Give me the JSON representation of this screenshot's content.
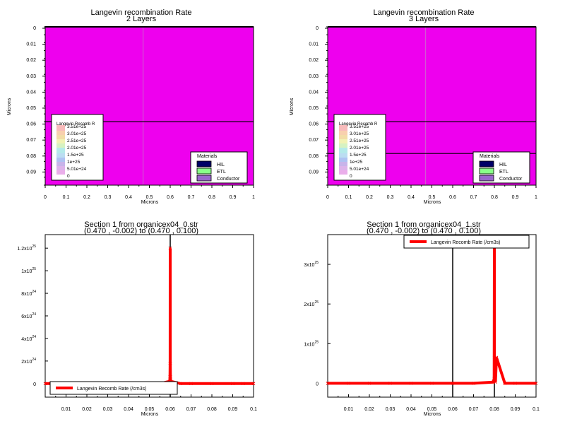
{
  "panels": [
    {
      "id": "tl",
      "kind": "contour",
      "title": "Langevin recombination Rate",
      "subtitle": "2 Layers",
      "xlabel": "Microns",
      "ylabel": "Microns",
      "xticks": [
        "0",
        "0.1",
        "0.2",
        "0.3",
        "0.4",
        "0.5",
        "0.6",
        "0.7",
        "0.8",
        "0.9",
        "1"
      ],
      "yticks": [
        "0",
        "0.01",
        "0.02",
        "0.03",
        "0.04",
        "0.05",
        "0.06",
        "0.07",
        "0.08",
        "0.09"
      ],
      "layer_boundaries_um": [
        0.06
      ],
      "colorbar_title": "Langevin Recomb R",
      "colorbar_levels": [
        "3.51e+25",
        "3.01e+25",
        "2.51e+25",
        "2.01e+25",
        "1.5e+25",
        "1e+25",
        "5.01e+24",
        "0"
      ],
      "materials_title": "Materials",
      "materials": [
        {
          "name": "HIL",
          "color": "#000066"
        },
        {
          "name": "ETL",
          "color": "#88ff88"
        },
        {
          "name": "Conductor",
          "color": "#9966cc"
        }
      ]
    },
    {
      "id": "tr",
      "kind": "contour",
      "title": "Langevin recombination Rate",
      "subtitle": "3 Layers",
      "xlabel": "Microns",
      "ylabel": "Microns",
      "xticks": [
        "0",
        "0.1",
        "0.2",
        "0.3",
        "0.4",
        "0.5",
        "0.6",
        "0.7",
        "0.8",
        "0.9",
        "1"
      ],
      "yticks": [
        "0",
        "0.01",
        "0.02",
        "0.03",
        "0.04",
        "0.05",
        "0.06",
        "0.07",
        "0.08",
        "0.09"
      ],
      "layer_boundaries_um": [
        0.06,
        0.08
      ],
      "colorbar_title": "Langevin Recomb R",
      "colorbar_levels": [
        "3.51e+25",
        "3.01e+25",
        "2.51e+25",
        "2.01e+25",
        "1.5e+25",
        "1e+25",
        "5.01e+24",
        "0"
      ],
      "materials_title": "Materials",
      "materials": [
        {
          "name": "HIL",
          "color": "#000066"
        },
        {
          "name": "ETL",
          "color": "#88ff88"
        },
        {
          "name": "Conductor",
          "color": "#9966cc"
        }
      ]
    },
    {
      "id": "bl",
      "kind": "line",
      "title": "Section 1 from organicex04_0.str",
      "subtitle": "(0.470 , -0.002) to (0.470 , 0.100)",
      "xlabel": "Microns",
      "xticks": [
        "0.01",
        "0.02",
        "0.03",
        "0.04",
        "0.05",
        "0.06",
        "0.07",
        "0.08",
        "0.09",
        "0.1"
      ],
      "yticks": [
        {
          "m": "0",
          "e": ""
        },
        {
          "m": "2x10",
          "e": "24"
        },
        {
          "m": "4x10",
          "e": "24"
        },
        {
          "m": "6x10",
          "e": "24"
        },
        {
          "m": "8x10",
          "e": "24"
        },
        {
          "m": "1x10",
          "e": "25"
        },
        {
          "m": "1.2x10",
          "e": "25"
        }
      ],
      "legend": "Langevin Recomb Rate (/cm3s)"
    },
    {
      "id": "br",
      "kind": "line",
      "title": "Section 1 from organicex04_1.str",
      "subtitle": "(0.470 , -0.002) to (0.470 , 0.100)",
      "xlabel": "Microns",
      "xticks": [
        "0.01",
        "0.02",
        "0.03",
        "0.04",
        "0.05",
        "0.06",
        "0.07",
        "0.08",
        "0.09",
        "0.1"
      ],
      "yticks": [
        {
          "m": "0",
          "e": ""
        },
        {
          "m": "1x10",
          "e": "25"
        },
        {
          "m": "2x10",
          "e": "25"
        },
        {
          "m": "3x10",
          "e": "25"
        }
      ],
      "legend": "Langevin Recomb Rate (/cm3s)"
    }
  ],
  "chart_data": [
    {
      "type": "heatmap",
      "title": "Langevin recombination Rate",
      "subtitle": "2 Layers",
      "xlabel": "Microns",
      "ylabel": "Microns",
      "xlim": [
        0,
        1
      ],
      "ylim": [
        0,
        0.1
      ],
      "fill_color": "#ee00ee",
      "section_line_x_um": 0.47,
      "layer_boundaries_um": [
        0.06
      ],
      "legend_position": "bottom-left"
    },
    {
      "type": "heatmap",
      "title": "Langevin recombination Rate",
      "subtitle": "3 Layers",
      "xlabel": "Microns",
      "ylabel": "Microns",
      "xlim": [
        0,
        1
      ],
      "ylim": [
        0,
        0.1
      ],
      "fill_color": "#ee00ee",
      "section_line_x_um": 0.47,
      "layer_boundaries_um": [
        0.06,
        0.08
      ],
      "legend_position": "bottom-left"
    },
    {
      "type": "line",
      "title": "Section 1 from organicex04_0.str",
      "subtitle": "(0.470 , -0.002) to (0.470 , 0.100)",
      "xlabel": "Microns",
      "ylabel": "",
      "xlim": [
        0,
        0.1
      ],
      "ylim": [
        -1.2e+24,
        1.32e+25
      ],
      "series_color": "#ff0000",
      "boundaries_um": [
        0.06
      ],
      "series": [
        {
          "name": "Langevin Recomb Rate (/cm3s)",
          "x": [
            0.0,
            0.005,
            0.01,
            0.02,
            0.03,
            0.04,
            0.05,
            0.055,
            0.0598,
            0.0599,
            0.05995,
            0.06,
            0.06,
            0.06005,
            0.0601,
            0.0602,
            0.065,
            0.07,
            0.08,
            0.09,
            0.095,
            0.1
          ],
          "y": [
            0,
            0,
            0,
            0,
            0,
            0,
            0,
            0,
            2e+23,
            6e+23,
            1.8e+24,
            1.2e+25,
            1.2e+25,
            1.8e+24,
            6e+23,
            2e+23,
            0,
            0,
            0,
            0,
            0,
            0
          ]
        }
      ],
      "legend_position": "bottom-left"
    },
    {
      "type": "line",
      "title": "Section 1 from organicex04_1.str",
      "subtitle": "(0.470 , -0.002) to (0.470 , 0.100)",
      "xlabel": "Microns",
      "ylabel": "",
      "xlim": [
        0,
        0.1
      ],
      "ylim": [
        -3.5e+24,
        3.75e+25
      ],
      "series_color": "#ff0000",
      "boundaries_um": [
        0.06,
        0.08
      ],
      "series": [
        {
          "name": "Langevin Recomb Rate (/cm3s)",
          "x": [
            0.0,
            0.01,
            0.02,
            0.03,
            0.04,
            0.05,
            0.06,
            0.07,
            0.0795,
            0.0799,
            0.08,
            0.08,
            0.08005,
            0.0801,
            0.0805,
            0.081,
            0.085,
            0.09,
            0.1
          ],
          "y": [
            0,
            0,
            0,
            0,
            0,
            0,
            0,
            0,
            3e+23,
            1.2e+24,
            3.5e+25,
            3.5e+25,
            6.5e+24,
            1.2e+24,
            3e+23,
            6.5e+24,
            0,
            0,
            0
          ]
        }
      ],
      "legend_position": "top-right"
    }
  ]
}
